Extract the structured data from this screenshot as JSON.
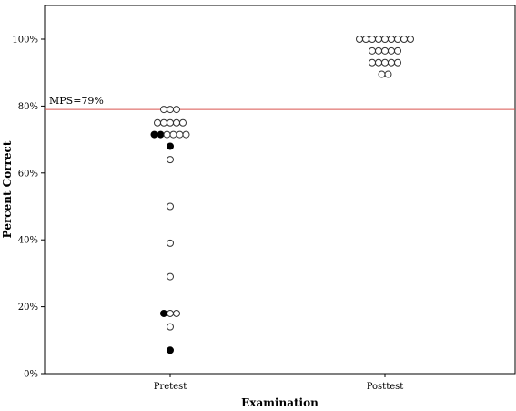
{
  "chart_data": {
    "type": "scatter",
    "subtype": "dot plot",
    "xlabel": "Examination",
    "ylabel": "Percent Correct",
    "categories": [
      "Pretest",
      "Posttest"
    ],
    "ylim": [
      0,
      110
    ],
    "yticks": [
      0,
      20,
      40,
      60,
      80,
      100
    ],
    "ytick_labels": [
      "0%",
      "20%",
      "40%",
      "60%",
      "80%",
      "100%"
    ],
    "grid": false,
    "reference_line": {
      "y": 79,
      "label": "MPS=79%",
      "color": "#d9534f"
    },
    "point_styles": {
      "open": {
        "fill": "#ffffff",
        "stroke": "#333333"
      },
      "filled": {
        "fill": "#000000",
        "stroke": "#000000"
      }
    },
    "groups": [
      {
        "category": "Pretest",
        "rows": [
          {
            "y": 79,
            "points": [
              "open",
              "open",
              "open"
            ]
          },
          {
            "y": 75,
            "points": [
              "open",
              "open",
              "open",
              "open",
              "open"
            ]
          },
          {
            "y": 71.5,
            "points": [
              "filled",
              "filled",
              "open",
              "open",
              "open",
              "open"
            ]
          },
          {
            "y": 68,
            "points": [
              "filled"
            ]
          },
          {
            "y": 64,
            "points": [
              "open"
            ]
          },
          {
            "y": 50,
            "points": [
              "open"
            ]
          },
          {
            "y": 39,
            "points": [
              "open"
            ]
          },
          {
            "y": 29,
            "points": [
              "open"
            ]
          },
          {
            "y": 18,
            "points": [
              "filled",
              "open",
              "open"
            ]
          },
          {
            "y": 14,
            "points": [
              "open"
            ]
          },
          {
            "y": 7,
            "points": [
              "filled"
            ]
          }
        ]
      },
      {
        "category": "Posttest",
        "rows": [
          {
            "y": 100,
            "points": [
              "open",
              "open",
              "open",
              "open",
              "open",
              "open",
              "open",
              "open",
              "open"
            ]
          },
          {
            "y": 96.5,
            "points": [
              "open",
              "open",
              "open",
              "open",
              "open"
            ]
          },
          {
            "y": 93,
            "points": [
              "open",
              "open",
              "open",
              "open",
              "open"
            ]
          },
          {
            "y": 89.5,
            "points": [
              "open",
              "open"
            ]
          }
        ]
      }
    ]
  }
}
